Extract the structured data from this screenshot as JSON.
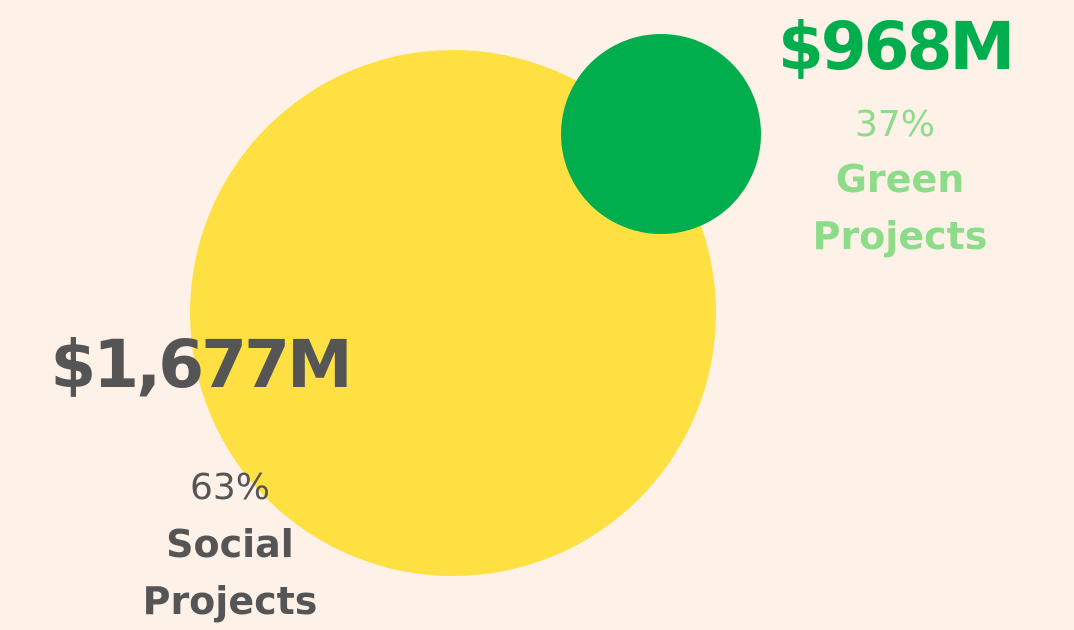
{
  "chart_data": {
    "type": "bubble",
    "categories": [
      "Social Projects",
      "Green Projects"
    ],
    "values": [
      1677,
      968
    ],
    "value_labels": [
      "$1,677M",
      "$968M"
    ],
    "shares": [
      63,
      37
    ],
    "share_labels": [
      "63%",
      "37%"
    ],
    "colors": [
      "#ffe042",
      "#00ae4d"
    ],
    "text_colors": [
      "#555555",
      "#00ae4d"
    ],
    "name_colors": [
      "#555555",
      "#8ddc8a"
    ]
  }
}
